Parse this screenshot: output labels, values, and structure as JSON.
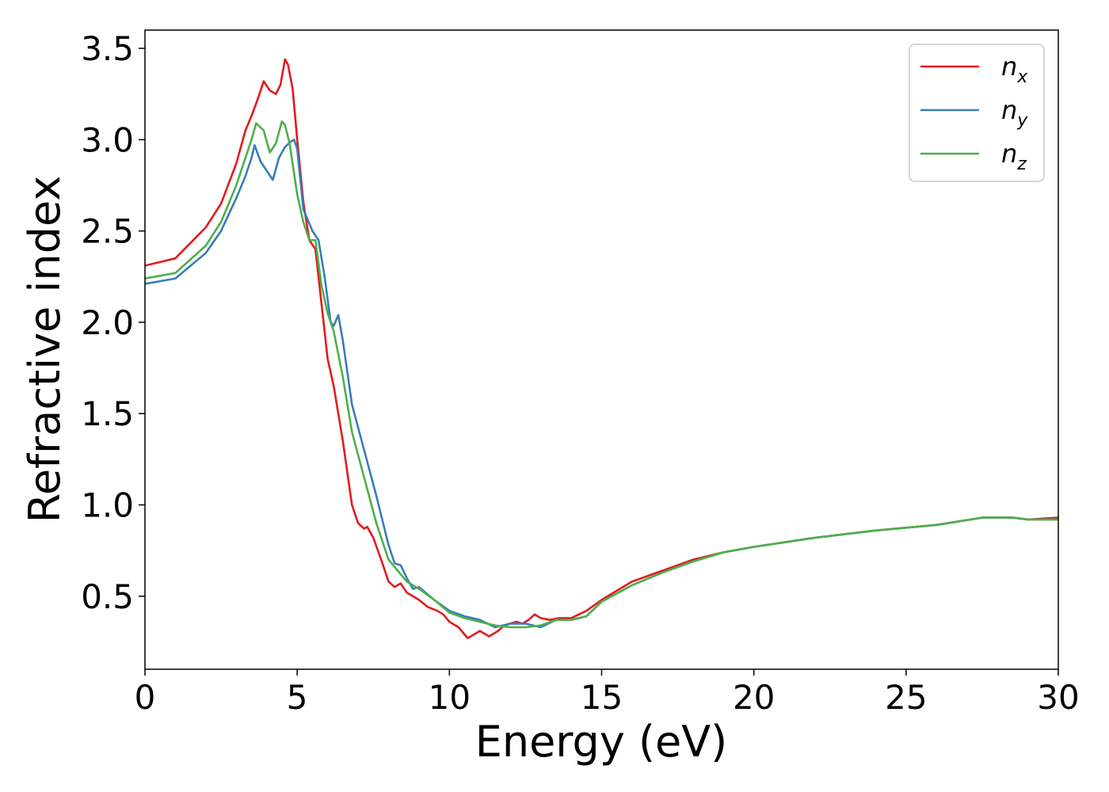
{
  "chart_data": {
    "type": "line",
    "xlabel": "Energy (eV)",
    "ylabel": "Refractive index",
    "xlim": [
      0,
      30
    ],
    "ylim": [
      0.1,
      3.6
    ],
    "xticks": [
      0,
      5,
      10,
      15,
      20,
      25,
      30
    ],
    "yticks": [
      0.5,
      1.0,
      1.5,
      2.0,
      2.5,
      3.0,
      3.5
    ],
    "xtick_labels": [
      "0",
      "5",
      "10",
      "15",
      "20",
      "25",
      "30"
    ],
    "ytick_labels": [
      "0.5",
      "1.0",
      "1.5",
      "2.0",
      "2.5",
      "3.0",
      "3.5"
    ],
    "grid": false,
    "legend_position": "top-right",
    "series": [
      {
        "name": "n_x",
        "legend_base": "n",
        "legend_sub": "x",
        "color": "#e41a1c",
        "x": [
          0,
          1,
          2,
          2.5,
          3,
          3.3,
          3.5,
          3.7,
          3.9,
          4.1,
          4.3,
          4.45,
          4.6,
          4.7,
          4.85,
          5.0,
          5.2,
          5.4,
          5.6,
          5.8,
          6.0,
          6.2,
          6.5,
          6.8,
          7.0,
          7.2,
          7.3,
          7.5,
          7.8,
          8.0,
          8.2,
          8.4,
          8.6,
          9.0,
          9.3,
          9.6,
          9.8,
          10.0,
          10.3,
          10.6,
          10.8,
          11.0,
          11.3,
          11.6,
          11.8,
          12.0,
          12.2,
          12.4,
          12.6,
          12.8,
          13.0,
          13.3,
          13.6,
          14.0,
          14.5,
          15.0,
          16.0,
          17.0,
          18.0,
          19.0,
          20.0,
          22.0,
          24.0,
          26.0,
          27.5,
          28.5,
          29.0,
          30.0
        ],
        "values": [
          2.31,
          2.35,
          2.52,
          2.65,
          2.87,
          3.05,
          3.13,
          3.22,
          3.32,
          3.27,
          3.25,
          3.3,
          3.44,
          3.41,
          3.28,
          3.0,
          2.66,
          2.45,
          2.4,
          2.1,
          1.8,
          1.65,
          1.35,
          1.0,
          0.9,
          0.87,
          0.88,
          0.82,
          0.68,
          0.58,
          0.55,
          0.57,
          0.52,
          0.48,
          0.44,
          0.42,
          0.4,
          0.36,
          0.33,
          0.27,
          0.29,
          0.31,
          0.28,
          0.31,
          0.34,
          0.35,
          0.36,
          0.35,
          0.37,
          0.4,
          0.38,
          0.37,
          0.38,
          0.38,
          0.42,
          0.48,
          0.58,
          0.64,
          0.7,
          0.74,
          0.77,
          0.82,
          0.86,
          0.89,
          0.93,
          0.93,
          0.92,
          0.93
        ]
      },
      {
        "name": "n_y",
        "legend_base": "n",
        "legend_sub": "y",
        "color": "#377eb8",
        "x": [
          0,
          1,
          2,
          2.5,
          3,
          3.3,
          3.5,
          3.6,
          3.8,
          4.0,
          4.2,
          4.4,
          4.6,
          4.8,
          4.9,
          5.0,
          5.2,
          5.5,
          5.7,
          5.9,
          6.1,
          6.2,
          6.35,
          6.5,
          6.8,
          7.2,
          7.6,
          8.0,
          8.2,
          8.4,
          8.6,
          8.8,
          9.0,
          9.5,
          10.0,
          10.5,
          11.0,
          11.5,
          12.0,
          12.5,
          13.0,
          13.5,
          14.0,
          14.5,
          15.0,
          16.0,
          17.0,
          18.0,
          19.0,
          20.0,
          22.0,
          24.0,
          26.0,
          27.5,
          28.5,
          29.0,
          30.0
        ],
        "values": [
          2.21,
          2.24,
          2.38,
          2.5,
          2.68,
          2.8,
          2.9,
          2.97,
          2.88,
          2.83,
          2.78,
          2.9,
          2.96,
          2.99,
          3.0,
          2.95,
          2.62,
          2.5,
          2.45,
          2.25,
          2.0,
          1.98,
          2.04,
          1.9,
          1.55,
          1.3,
          1.05,
          0.78,
          0.68,
          0.67,
          0.6,
          0.54,
          0.55,
          0.48,
          0.42,
          0.39,
          0.37,
          0.33,
          0.35,
          0.35,
          0.33,
          0.37,
          0.37,
          0.39,
          0.47,
          0.56,
          0.63,
          0.69,
          0.74,
          0.77,
          0.82,
          0.86,
          0.89,
          0.93,
          0.93,
          0.92,
          0.92
        ]
      },
      {
        "name": "n_z",
        "legend_base": "n",
        "legend_sub": "z",
        "color": "#4daf4a",
        "x": [
          0,
          1,
          2,
          2.5,
          3,
          3.3,
          3.5,
          3.65,
          3.9,
          4.1,
          4.3,
          4.5,
          4.6,
          4.75,
          5.0,
          5.2,
          5.4,
          5.6,
          5.8,
          6.0,
          6.2,
          6.5,
          6.8,
          7.2,
          7.6,
          8.0,
          8.3,
          8.6,
          9.0,
          9.5,
          10.0,
          10.5,
          11.0,
          11.5,
          12.0,
          12.5,
          13.0,
          13.5,
          14.0,
          14.5,
          15.0,
          16.0,
          17.0,
          18.0,
          19.0,
          20.0,
          22.0,
          24.0,
          26.0,
          27.5,
          28.5,
          29.0,
          30.0
        ],
        "values": [
          2.24,
          2.27,
          2.42,
          2.55,
          2.75,
          2.9,
          3.0,
          3.09,
          3.05,
          2.93,
          2.98,
          3.1,
          3.08,
          2.98,
          2.7,
          2.55,
          2.45,
          2.45,
          2.2,
          2.05,
          1.95,
          1.7,
          1.4,
          1.15,
          0.9,
          0.7,
          0.64,
          0.58,
          0.54,
          0.48,
          0.41,
          0.38,
          0.36,
          0.34,
          0.33,
          0.33,
          0.34,
          0.37,
          0.37,
          0.39,
          0.47,
          0.56,
          0.63,
          0.69,
          0.74,
          0.77,
          0.82,
          0.86,
          0.89,
          0.93,
          0.93,
          0.92,
          0.92
        ]
      }
    ]
  }
}
